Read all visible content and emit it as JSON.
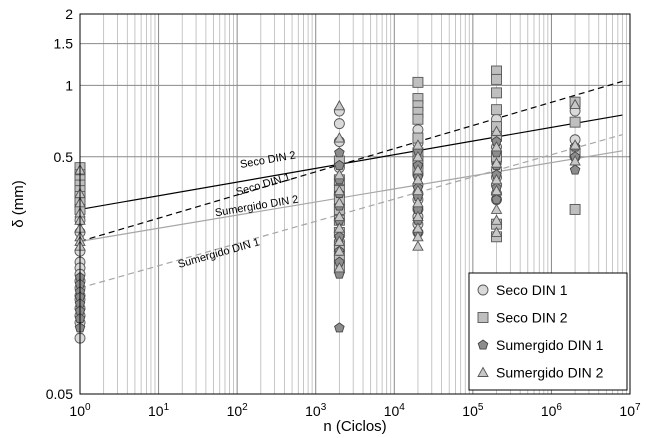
{
  "chart_data": {
    "type": "scatter",
    "xscale": "log",
    "yscale": "log",
    "xlim": [
      1,
      10000000
    ],
    "ylim": [
      0.05,
      2
    ],
    "grid": true,
    "xlabel": "n (Ciclos)",
    "ylabel": "δ (mm)",
    "xticks": [
      {
        "value": 1,
        "base": "10",
        "exp": "0"
      },
      {
        "value": 10,
        "base": "10",
        "exp": "1"
      },
      {
        "value": 100,
        "base": "10",
        "exp": "2"
      },
      {
        "value": 1000,
        "base": "10",
        "exp": "3"
      },
      {
        "value": 10000,
        "base": "10",
        "exp": "4"
      },
      {
        "value": 100000,
        "base": "10",
        "exp": "5"
      },
      {
        "value": 1000000,
        "base": "10",
        "exp": "6"
      },
      {
        "value": 10000000,
        "base": "10",
        "exp": "7"
      }
    ],
    "yticks": [
      {
        "value": 0.05,
        "label": "0.05"
      },
      {
        "value": 0.5,
        "label": "0.5"
      },
      {
        "value": 1,
        "label": "1"
      },
      {
        "value": 1.5,
        "label": "1.5"
      },
      {
        "value": 2,
        "label": "2"
      }
    ],
    "legend_position": "bottom-right",
    "series": [
      {
        "name": "Seco DIN 1",
        "marker": "circle",
        "fill": "#d9d9d9",
        "stroke": "#555555",
        "points": [
          [
            1,
            0.27
          ],
          [
            1,
            0.24
          ],
          [
            1,
            0.2
          ],
          [
            1,
            0.18
          ],
          [
            1,
            0.17
          ],
          [
            1,
            0.16
          ],
          [
            1,
            0.15
          ],
          [
            1,
            0.14
          ],
          [
            1,
            0.13
          ],
          [
            1,
            0.125
          ],
          [
            1,
            0.115
          ],
          [
            1,
            0.107
          ],
          [
            1,
            0.1
          ],
          [
            1,
            0.086
          ],
          [
            2000,
            0.78
          ],
          [
            2000,
            0.69
          ],
          [
            2000,
            0.58
          ],
          [
            2000,
            0.45
          ],
          [
            2000,
            0.38
          ],
          [
            2000,
            0.34
          ],
          [
            2000,
            0.3
          ],
          [
            2000,
            0.27
          ],
          [
            2000,
            0.24
          ],
          [
            2000,
            0.22
          ],
          [
            2000,
            0.2
          ],
          [
            2000,
            0.18
          ],
          [
            20000,
            0.65
          ],
          [
            20000,
            0.57
          ],
          [
            20000,
            0.5
          ],
          [
            20000,
            0.45
          ],
          [
            20000,
            0.42
          ],
          [
            20000,
            0.38
          ],
          [
            20000,
            0.35
          ],
          [
            20000,
            0.33
          ],
          [
            20000,
            0.3
          ],
          [
            20000,
            0.28
          ],
          [
            20000,
            0.26
          ],
          [
            20000,
            0.24
          ],
          [
            200000,
            0.72
          ],
          [
            200000,
            0.63
          ],
          [
            200000,
            0.55
          ],
          [
            200000,
            0.48
          ],
          [
            200000,
            0.44
          ],
          [
            200000,
            0.41
          ],
          [
            200000,
            0.38
          ],
          [
            200000,
            0.35
          ],
          [
            200000,
            0.33
          ],
          [
            2000000,
            0.78
          ],
          [
            2000000,
            0.59
          ],
          [
            2000000,
            0.5
          ]
        ]
      },
      {
        "name": "Seco DIN 2",
        "marker": "square",
        "fill": "#bfbfbf",
        "stroke": "#555555",
        "points": [
          [
            1,
            0.45
          ],
          [
            1,
            0.42
          ],
          [
            1,
            0.4
          ],
          [
            1,
            0.38
          ],
          [
            1,
            0.36
          ],
          [
            1,
            0.34
          ],
          [
            1,
            0.32
          ],
          [
            1,
            0.3
          ],
          [
            2000,
            0.48
          ],
          [
            2000,
            0.4
          ],
          [
            2000,
            0.36
          ],
          [
            2000,
            0.33
          ],
          [
            2000,
            0.3
          ],
          [
            2000,
            0.27
          ],
          [
            2000,
            0.24
          ],
          [
            2000,
            0.21
          ],
          [
            2000,
            0.19
          ],
          [
            2000,
            0.17
          ],
          [
            20000,
            1.03
          ],
          [
            20000,
            0.88
          ],
          [
            20000,
            0.82
          ],
          [
            20000,
            0.77
          ],
          [
            20000,
            0.72
          ],
          [
            20000,
            0.6
          ],
          [
            20000,
            0.52
          ],
          [
            20000,
            0.48
          ],
          [
            20000,
            0.44
          ],
          [
            200000,
            1.15
          ],
          [
            200000,
            1.06
          ],
          [
            200000,
            0.93
          ],
          [
            200000,
            0.79
          ],
          [
            200000,
            0.67
          ],
          [
            200000,
            0.61
          ],
          [
            200000,
            0.5
          ],
          [
            200000,
            0.26
          ],
          [
            200000,
            0.23
          ],
          [
            2000000,
            0.85
          ],
          [
            2000000,
            0.7
          ],
          [
            2000000,
            0.52
          ],
          [
            2000000,
            0.3
          ]
        ]
      },
      {
        "name": "Sumergido DIN 1",
        "marker": "pentagon",
        "fill": "#8c8c8c",
        "stroke": "#444444",
        "points": [
          [
            1,
            0.155
          ],
          [
            1,
            0.145
          ],
          [
            1,
            0.135
          ],
          [
            1,
            0.128
          ],
          [
            1,
            0.12
          ],
          [
            1,
            0.112
          ],
          [
            1,
            0.104
          ],
          [
            1,
            0.095
          ],
          [
            2000,
            0.52
          ],
          [
            2000,
            0.46
          ],
          [
            2000,
            0.4
          ],
          [
            2000,
            0.35
          ],
          [
            2000,
            0.31
          ],
          [
            2000,
            0.27
          ],
          [
            2000,
            0.23
          ],
          [
            2000,
            0.2
          ],
          [
            2000,
            0.18
          ],
          [
            2000,
            0.16
          ],
          [
            2000,
            0.095
          ],
          [
            20000,
            0.53
          ],
          [
            20000,
            0.46
          ],
          [
            20000,
            0.41
          ],
          [
            20000,
            0.37
          ],
          [
            20000,
            0.34
          ],
          [
            20000,
            0.3
          ],
          [
            20000,
            0.27
          ],
          [
            20000,
            0.24
          ],
          [
            200000,
            0.58
          ],
          [
            200000,
            0.52
          ],
          [
            200000,
            0.46
          ],
          [
            200000,
            0.42
          ],
          [
            200000,
            0.37
          ],
          [
            200000,
            0.33
          ],
          [
            2000000,
            0.55
          ],
          [
            2000000,
            0.5
          ],
          [
            2000000,
            0.44
          ]
        ]
      },
      {
        "name": "Sumergido DIN 2",
        "marker": "triangle",
        "fill": "#c8c8c8",
        "stroke": "#555555",
        "points": [
          [
            1,
            0.44
          ],
          [
            1,
            0.35
          ],
          [
            1,
            0.32
          ],
          [
            1,
            0.29
          ],
          [
            1,
            0.27
          ],
          [
            1,
            0.25
          ],
          [
            1,
            0.23
          ],
          [
            1,
            0.22
          ],
          [
            1,
            0.21
          ],
          [
            2000,
            0.82
          ],
          [
            2000,
            0.6
          ],
          [
            2000,
            0.42
          ],
          [
            2000,
            0.36
          ],
          [
            2000,
            0.32
          ],
          [
            2000,
            0.28
          ],
          [
            2000,
            0.25
          ],
          [
            2000,
            0.22
          ],
          [
            2000,
            0.2
          ],
          [
            2000,
            0.17
          ],
          [
            20000,
            0.56
          ],
          [
            20000,
            0.5
          ],
          [
            20000,
            0.44
          ],
          [
            20000,
            0.4
          ],
          [
            20000,
            0.36
          ],
          [
            20000,
            0.32
          ],
          [
            20000,
            0.28
          ],
          [
            20000,
            0.25
          ],
          [
            20000,
            0.23
          ],
          [
            20000,
            0.21
          ],
          [
            200000,
            0.64
          ],
          [
            200000,
            0.55
          ],
          [
            200000,
            0.47
          ],
          [
            200000,
            0.4
          ],
          [
            200000,
            0.36
          ],
          [
            200000,
            0.3
          ],
          [
            200000,
            0.27
          ],
          [
            200000,
            0.24
          ],
          [
            2000000,
            0.83
          ],
          [
            2000000,
            0.56
          ],
          [
            2000000,
            0.48
          ]
        ]
      }
    ],
    "fit_lines": [
      {
        "label": "Seco DIN 2",
        "style": "solid",
        "color": "#000000",
        "x": [
          1,
          8000000
        ],
        "y": [
          0.3,
          0.75
        ],
        "label_x": 250,
        "label_y": 0.47
      },
      {
        "label": "Seco DIN 1",
        "style": "dashed",
        "color": "#000000",
        "x": [
          1,
          8000000
        ],
        "y": [
          0.22,
          1.04
        ],
        "label_x": 220,
        "label_y": 0.37
      },
      {
        "label": "Sumergido DIN 2",
        "style": "solid",
        "color": "#a6a6a6",
        "x": [
          1,
          8000000
        ],
        "y": [
          0.22,
          0.53
        ],
        "label_x": 180,
        "label_y": 0.3
      },
      {
        "label": "Sumergido DIN 1",
        "style": "dashed",
        "color": "#a6a6a6",
        "x": [
          1,
          8000000
        ],
        "y": [
          0.14,
          0.62
        ],
        "label_x": 60,
        "label_y": 0.19
      }
    ]
  }
}
